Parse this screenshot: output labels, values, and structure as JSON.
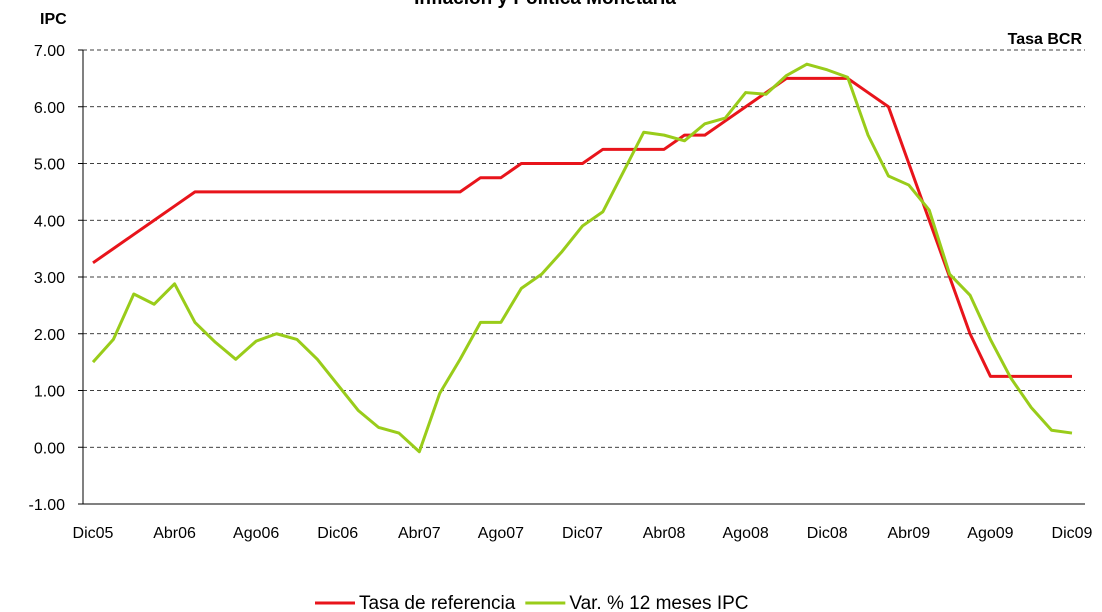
{
  "chart_data": {
    "type": "line",
    "title": "Inflación y Política Monetaria",
    "y_axis_label": "IPC",
    "y2_axis_label": "Tasa BCR",
    "categories": [
      "Dic05",
      null,
      null,
      null,
      "Abr06",
      null,
      null,
      null,
      "Ago06",
      null,
      null,
      null,
      "Dic06",
      null,
      null,
      null,
      "Abr07",
      null,
      null,
      null,
      "Ago07",
      null,
      null,
      null,
      "Dic07",
      null,
      null,
      null,
      "Abr08",
      null,
      null,
      null,
      "Ago08",
      null,
      null,
      null,
      "Dic08",
      null,
      null,
      null,
      "Abr09",
      null,
      null,
      null,
      "Ago09",
      null,
      null,
      null,
      "Dic09"
    ],
    "series": [
      {
        "name": "Tasa de referencia",
        "color": "#e8141b",
        "values": [
          3.25,
          3.5,
          3.75,
          4.0,
          4.25,
          4.5,
          4.5,
          4.5,
          4.5,
          4.5,
          4.5,
          4.5,
          4.5,
          4.5,
          4.5,
          4.5,
          4.5,
          4.5,
          4.5,
          4.75,
          4.75,
          5.0,
          5.0,
          5.0,
          5.0,
          5.25,
          5.25,
          5.25,
          5.25,
          5.5,
          5.5,
          5.75,
          6.0,
          6.25,
          6.5,
          6.5,
          6.5,
          6.5,
          6.25,
          6.0,
          5.0,
          4.0,
          3.0,
          2.0,
          1.25,
          1.25,
          1.25,
          1.25,
          1.25
        ]
      },
      {
        "name": "Var. % 12 meses IPC",
        "color": "#99cc1a",
        "values": [
          1.5,
          1.9,
          2.7,
          2.52,
          2.88,
          2.2,
          1.85,
          1.55,
          1.87,
          2.0,
          1.9,
          1.55,
          1.1,
          0.65,
          0.35,
          0.25,
          -0.08,
          0.95,
          1.55,
          2.2,
          2.2,
          2.8,
          3.05,
          3.45,
          3.9,
          4.15,
          4.85,
          5.55,
          5.5,
          5.4,
          5.7,
          5.8,
          6.25,
          6.22,
          6.55,
          6.75,
          6.65,
          6.52,
          5.5,
          4.78,
          4.62,
          4.18,
          3.05,
          2.68,
          1.9,
          1.22,
          0.7,
          0.3,
          0.25
        ]
      }
    ],
    "ylim": [
      -1,
      7
    ],
    "yticks": [
      {
        "value": -1,
        "label": "-1.00"
      },
      {
        "value": 0,
        "label": "0.00"
      },
      {
        "value": 1,
        "label": "1.00"
      },
      {
        "value": 2,
        "label": "2.00"
      },
      {
        "value": 3,
        "label": "3.00"
      },
      {
        "value": 4,
        "label": "4.00"
      },
      {
        "value": 5,
        "label": "5.00"
      },
      {
        "value": 6,
        "label": "6.00"
      },
      {
        "value": 7,
        "label": "7.00"
      }
    ],
    "grid": true,
    "legend": "bottom"
  }
}
